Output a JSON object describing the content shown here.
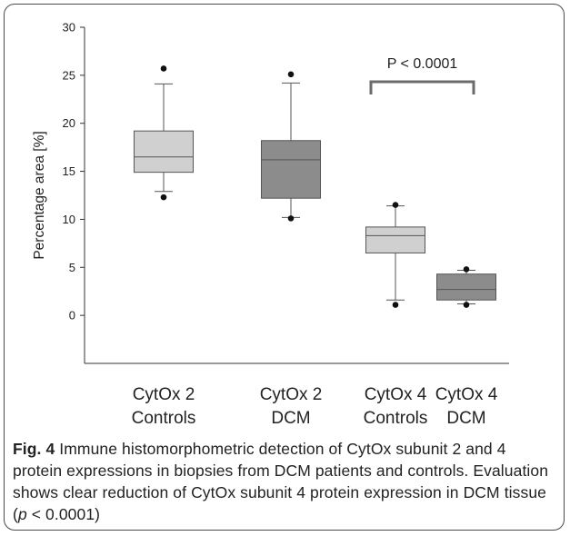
{
  "chart_data": {
    "type": "box",
    "ylabel": "Percentage area [%]",
    "ylim": [
      -5,
      30
    ],
    "yticks": [
      0,
      5,
      10,
      15,
      20,
      25,
      30
    ],
    "grid": false,
    "categories": [
      {
        "line1": "CytOx 2",
        "line2": "Controls"
      },
      {
        "line1": "CytOx 2",
        "line2": "DCM"
      },
      {
        "line1": "CytOx 4",
        "line2": "Controls"
      },
      {
        "line1": "CytOx 4",
        "line2": "DCM"
      }
    ],
    "boxes": [
      {
        "whisker_low": 12.9,
        "q1": 14.9,
        "median": 16.5,
        "q3": 19.2,
        "whisker_high": 24.1,
        "outliers": [
          12.3,
          25.7
        ],
        "color": "#d0d0d0"
      },
      {
        "whisker_low": 10.2,
        "q1": 12.2,
        "median": 16.2,
        "q3": 18.2,
        "whisker_high": 24.2,
        "outliers": [
          10.1,
          25.1
        ],
        "color": "#8c8c8c"
      },
      {
        "whisker_low": 1.6,
        "q1": 6.5,
        "median": 8.3,
        "q3": 9.2,
        "whisker_high": 11.4,
        "outliers": [
          1.1,
          11.5
        ],
        "color": "#d0d0d0"
      },
      {
        "whisker_low": 1.2,
        "q1": 1.6,
        "median": 2.7,
        "q3": 4.3,
        "whisker_high": 4.7,
        "outliers": [
          1.1,
          4.8
        ],
        "color": "#8c8c8c"
      }
    ],
    "annotation": {
      "text": "P < 0.0001",
      "from_index": 2,
      "to_index": 3
    }
  },
  "caption": {
    "fig_label": "Fig. 4",
    "text_before_p": " Immune histomorphometric detection of CytOx subunit 2 and 4 protein expressions in biopsies from DCM patients and controls. Evaluation shows clear reduction of CytOx subunit 4 protein expression in DCM tissue (",
    "p_symbol": "p",
    "text_after_p": " < 0.0001)"
  }
}
